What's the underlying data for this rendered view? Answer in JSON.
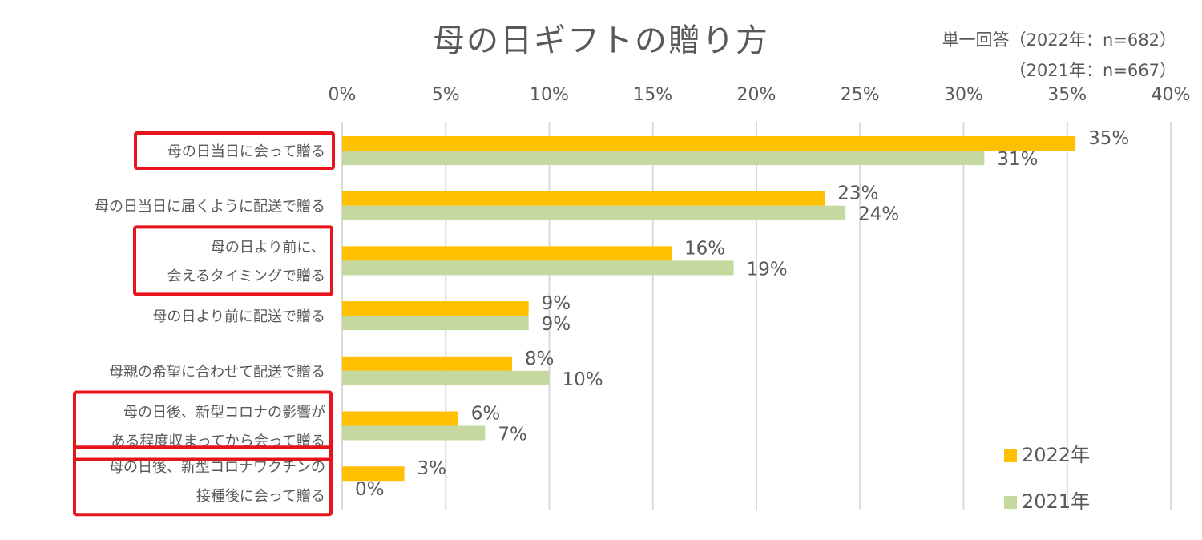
{
  "header": {
    "title": "母の日ギフトの贈り方",
    "note_line1": "単一回答（2022年：n=682）",
    "note_line2": "（2021年：n=667）"
  },
  "legend": {
    "series1": "2022年",
    "series2": "2021年"
  },
  "colors": {
    "series2022": "#FFC000",
    "series2021": "#C5D89F",
    "highlight": "#E8141B",
    "grid": "#D9D9D9",
    "text": "#595959"
  },
  "chart_data": {
    "type": "bar",
    "orientation": "horizontal",
    "title": "母の日ギフトの贈り方",
    "xlim": [
      0,
      40
    ],
    "x_ticks": [
      0,
      5,
      10,
      15,
      20,
      25,
      30,
      35,
      40
    ],
    "x_tick_labels": [
      "0%",
      "5%",
      "10%",
      "15%",
      "20%",
      "25%",
      "30%",
      "35%",
      "40%"
    ],
    "categories": [
      [
        "母の日当日に会って贈る"
      ],
      [
        "母の日当日に届くように配送で贈る"
      ],
      [
        "母の日より前に、",
        "会えるタイミングで贈る"
      ],
      [
        "母の日より前に配送で贈る"
      ],
      [
        "母親の希望に合わせて配送で贈る"
      ],
      [
        "母の日後、新型コロナの影響が",
        "ある程度収まってから会って贈る"
      ],
      [
        "母の日後、新型コロナワクチンの",
        "接種後に会って贈る"
      ]
    ],
    "highlighted": [
      true,
      false,
      true,
      false,
      false,
      true,
      true
    ],
    "series": [
      {
        "name": "2022年",
        "values": [
          35.4,
          23.3,
          15.9,
          9.0,
          8.2,
          5.6,
          3.0
        ],
        "labels": [
          "35%",
          "23%",
          "16%",
          "9%",
          "8%",
          "6%",
          "3%"
        ]
      },
      {
        "name": "2021年",
        "values": [
          31.0,
          24.3,
          18.9,
          9.0,
          10.0,
          6.9,
          0.0
        ],
        "labels": [
          "31%",
          "24%",
          "19%",
          "9%",
          "10%",
          "7%",
          "0%"
        ]
      }
    ]
  }
}
